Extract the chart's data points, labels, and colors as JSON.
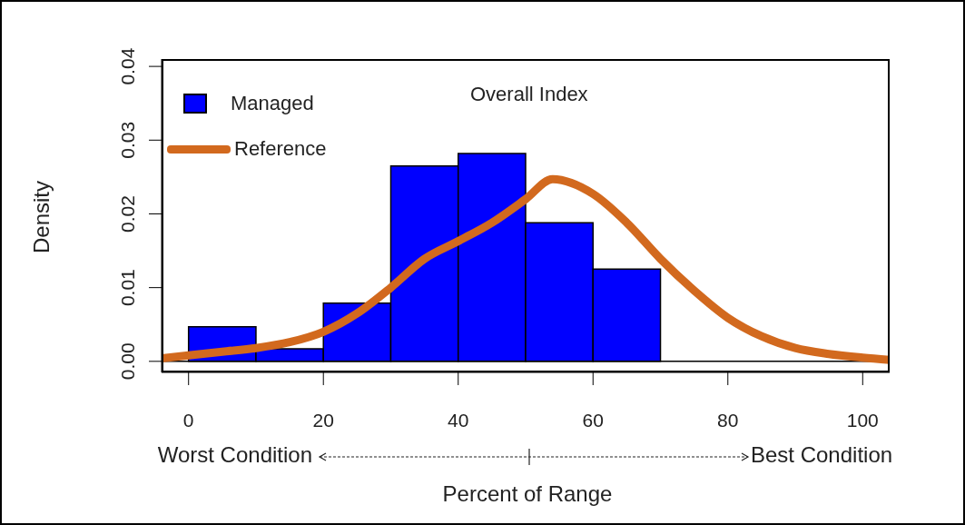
{
  "chart_data": {
    "type": "histogram",
    "xlabel": "Percent of Range",
    "ylabel": "Density",
    "xlim": [
      -4,
      104
    ],
    "ylim": [
      -0.0015,
      0.041
    ],
    "xticks": [
      0,
      20,
      40,
      60,
      80,
      100
    ],
    "yticks": [
      {
        "value": 0,
        "label": "0.00"
      },
      {
        "value": 0.01,
        "label": "0.01"
      },
      {
        "value": 0.02,
        "label": "0.02"
      },
      {
        "value": 0.03,
        "label": "0.03"
      },
      {
        "value": 0.04,
        "label": "0.04"
      }
    ],
    "legend": "top left",
    "annotations": [
      "Overall Index",
      "Worst Condition",
      "Best Condition"
    ],
    "ref_lines": [
      {
        "axis": "y",
        "value": 0,
        "color": "#000000"
      }
    ],
    "series": [
      {
        "name": "Managed",
        "color": "#0000ff",
        "bins": [
          0,
          10,
          20,
          30,
          40,
          50,
          60,
          70
        ],
        "values": [
          0.0047,
          0.0017,
          0.0079,
          0.0265,
          0.0282,
          0.0188,
          0.0125
        ]
      },
      {
        "name": "Reference",
        "type": "line",
        "color": "#d2691e",
        "x": [
          -4,
          0,
          5,
          10,
          15,
          20,
          25,
          30,
          35,
          40,
          45,
          50,
          54,
          60,
          65,
          70,
          75,
          80,
          85,
          90,
          95,
          100,
          104
        ],
        "values": [
          0.0004,
          0.0008,
          0.0013,
          0.0018,
          0.0026,
          0.004,
          0.0065,
          0.01,
          0.0139,
          0.0163,
          0.0188,
          0.022,
          0.0247,
          0.0227,
          0.0188,
          0.0139,
          0.0096,
          0.0059,
          0.0034,
          0.0018,
          0.001,
          0.0005,
          0.0002
        ]
      }
    ]
  }
}
